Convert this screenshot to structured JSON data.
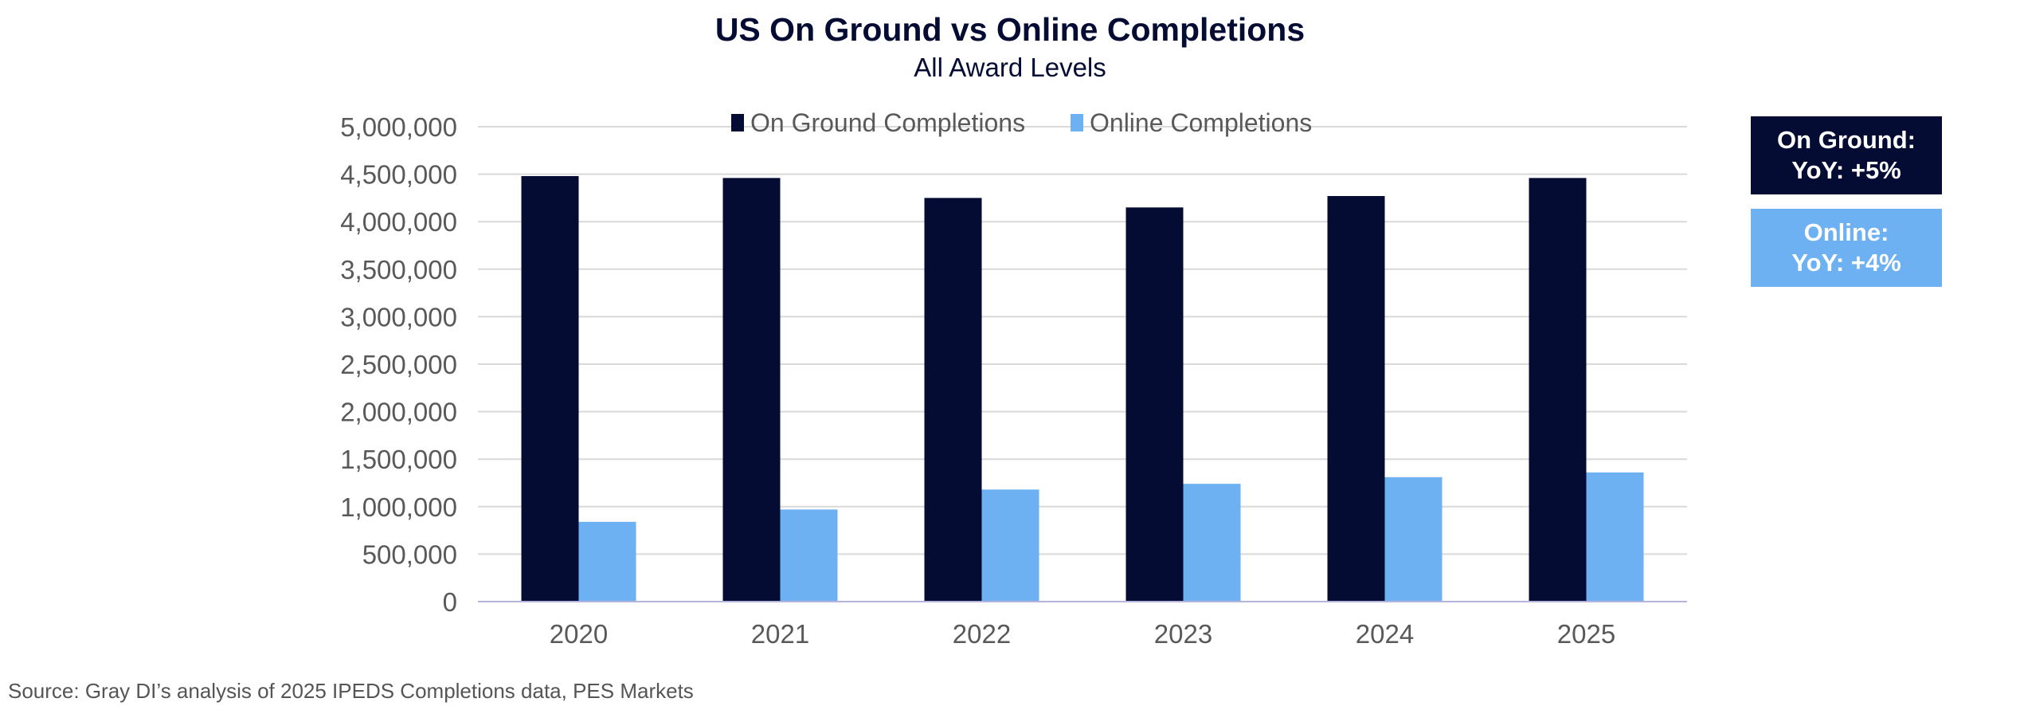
{
  "chart_data": {
    "type": "bar",
    "title": "US On Ground vs Online Completions",
    "subtitle": "All Award Levels",
    "categories": [
      "2020",
      "2021",
      "2022",
      "2023",
      "2024",
      "2025"
    ],
    "series": [
      {
        "name": "On Ground Completions",
        "color": "#050c33",
        "values": [
          4480000,
          4460000,
          4250000,
          4150000,
          4270000,
          4460000
        ]
      },
      {
        "name": "Online Completions",
        "color": "#6db1f2",
        "values": [
          840000,
          970000,
          1180000,
          1240000,
          1310000,
          1360000
        ]
      }
    ],
    "ylim": [
      0,
      5000000
    ],
    "yticks": [
      0,
      500000,
      1000000,
      1500000,
      2000000,
      2500000,
      3000000,
      3500000,
      4000000,
      4500000,
      5000000
    ],
    "ytick_labels": [
      "0",
      "500,000",
      "1,000,000",
      "1,500,000",
      "2,000,000",
      "2,500,000",
      "3,000,000",
      "3,500,000",
      "4,000,000",
      "4,500,000",
      "5,000,000"
    ],
    "grid": true,
    "legend_position": "top-center"
  },
  "callouts": {
    "on_ground": {
      "line1": "On Ground:",
      "line2": "YoY: +5%",
      "color": "#050c33"
    },
    "online": {
      "line1": "Online:",
      "line2": "YoY: +4%",
      "color": "#6db1f2"
    }
  },
  "source": "Source:  Gray DI’s analysis of 2025 IPEDS Completions data, PES Markets"
}
